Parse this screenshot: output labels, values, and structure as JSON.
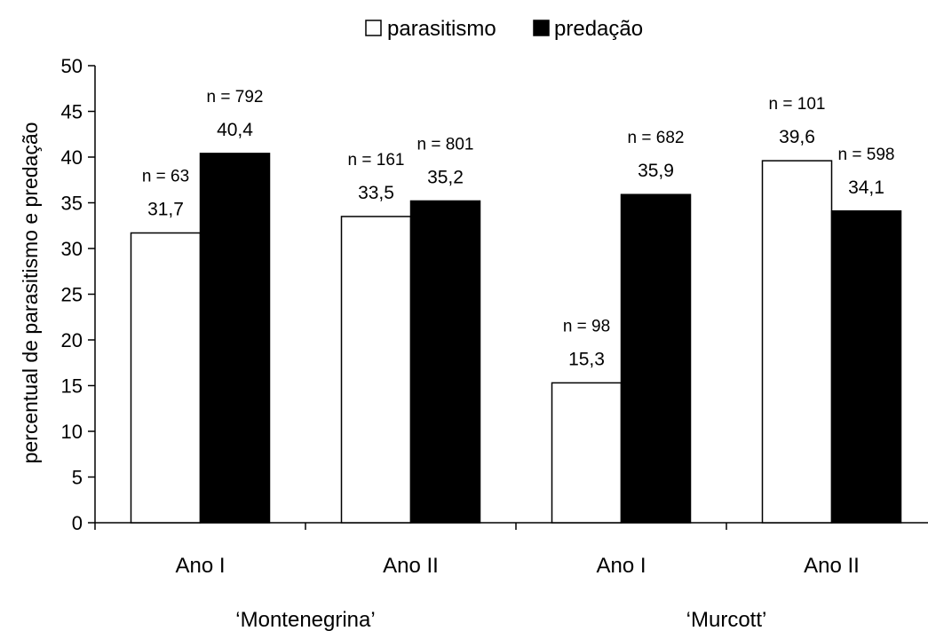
{
  "chart_data": {
    "type": "bar",
    "title": "",
    "ylabel": "percentual de parasitismo e predação",
    "xlabel": "",
    "ylim": [
      0,
      50
    ],
    "yticks": [
      0,
      5,
      10,
      15,
      20,
      25,
      30,
      35,
      40,
      45,
      50
    ],
    "categories": [
      "Ano I",
      "Ano II",
      "Ano I",
      "Ano II"
    ],
    "groups": [
      {
        "label": "‘Montenegrina’",
        "categories": [
          0,
          1
        ]
      },
      {
        "label": "‘Murcott’",
        "categories": [
          2,
          3
        ]
      }
    ],
    "legend": {
      "position": "top"
    },
    "series": [
      {
        "name": "parasitismo",
        "color": "#ffffff",
        "values": [
          31.7,
          33.5,
          15.3,
          39.6
        ],
        "value_labels": [
          "31,7",
          "33,5",
          "15,3",
          "39,6"
        ],
        "n_labels": [
          "n = 63",
          "n = 161",
          "n = 98",
          "n = 101"
        ]
      },
      {
        "name": "predação",
        "color": "#000000",
        "values": [
          40.4,
          35.2,
          35.9,
          34.1
        ],
        "value_labels": [
          "40,4",
          "35,2",
          "35,9",
          "34,1"
        ],
        "n_labels": [
          "n = 792",
          "n = 801",
          "n = 682",
          "n = 598"
        ]
      }
    ]
  }
}
